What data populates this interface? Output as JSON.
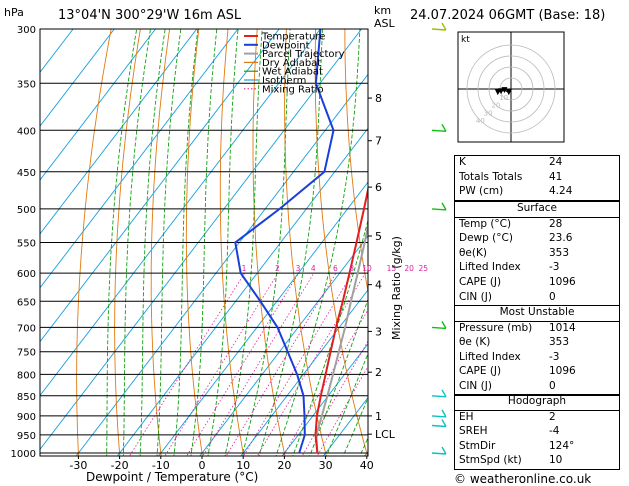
{
  "header": {
    "left_unit": "hPa",
    "location": "13°04'N  300°29'W  16m  ASL",
    "right_unit_top": "km",
    "right_unit_bottom": "ASL",
    "datetime": "24.07.2024  06GMT  (Base: 18)"
  },
  "footer": {
    "copyright": "© weatheronline.co.uk"
  },
  "chart_data": {
    "type": "line",
    "subtype": "skew-T log-P diagram",
    "xlabel": "Dewpoint / Temperature (°C)",
    "ylabel_left": "hPa",
    "ylabel_right": "Mixing Ratio (g/kg)",
    "x_ticks": [
      -30,
      -20,
      -10,
      0,
      10,
      20,
      30,
      40
    ],
    "pressure_levels": [
      300,
      350,
      400,
      450,
      500,
      550,
      600,
      650,
      700,
      750,
      800,
      850,
      900,
      950,
      1000
    ],
    "height_km_ticks": [
      {
        "label": "8",
        "p": 365
      },
      {
        "label": "7",
        "p": 412
      },
      {
        "label": "6",
        "p": 470
      },
      {
        "label": "5",
        "p": 540
      },
      {
        "label": "4",
        "p": 620
      },
      {
        "label": "3",
        "p": 708
      },
      {
        "label": "2",
        "p": 795
      },
      {
        "label": "1",
        "p": 900
      },
      {
        "label": "LCL",
        "p": 948
      }
    ],
    "mixing_ratio_labels": [
      "1",
      "2",
      "3",
      "4",
      "6",
      "8",
      "10",
      "15",
      "20",
      "25"
    ],
    "mixing_ratio_values": [
      1,
      2,
      3,
      4,
      6,
      8,
      10,
      15,
      20,
      25
    ],
    "legend": [
      "Temperature",
      "Dewpoint",
      "Parcel Trajectory",
      "Dry Adiabat",
      "Wet Adiabat",
      "Isotherm",
      "Mixing Ratio"
    ],
    "legend_position": "top-left",
    "colors": {
      "temperature": "#e02020",
      "dewpoint": "#1a3fd8",
      "parcel": "#a0a0a0",
      "dry_adiabat": "#e07a10",
      "wet_adiabat": "#10a010",
      "isotherm": "#18a0e0",
      "mixing_ratio": "#e020a0"
    },
    "series": [
      {
        "name": "Temperature",
        "points": [
          {
            "p": 1000,
            "t": 28.0
          },
          {
            "p": 950,
            "t": 24.2
          },
          {
            "p": 900,
            "t": 21.0
          },
          {
            "p": 850,
            "t": 18.2
          },
          {
            "p": 800,
            "t": 15.4
          },
          {
            "p": 750,
            "t": 12.4
          },
          {
            "p": 700,
            "t": 9.2
          },
          {
            "p": 650,
            "t": 6.0
          },
          {
            "p": 600,
            "t": 2.4
          },
          {
            "p": 550,
            "t": -1.6
          },
          {
            "p": 500,
            "t": -6.0
          },
          {
            "p": 450,
            "t": -11.0
          },
          {
            "p": 400,
            "t": -16.6
          },
          {
            "p": 350,
            "t": -23.5
          },
          {
            "p": 300,
            "t": -31.5
          }
        ]
      },
      {
        "name": "Dewpoint",
        "points": [
          {
            "p": 1000,
            "t": 23.6
          },
          {
            "p": 950,
            "t": 21.6
          },
          {
            "p": 900,
            "t": 18.0
          },
          {
            "p": 850,
            "t": 14.0
          },
          {
            "p": 800,
            "t": 8.5
          },
          {
            "p": 750,
            "t": 2.0
          },
          {
            "p": 700,
            "t": -5.0
          },
          {
            "p": 650,
            "t": -14.0
          },
          {
            "p": 600,
            "t": -24.0
          },
          {
            "p": 550,
            "t": -31.0
          },
          {
            "p": 500,
            "t": -26.5
          },
          {
            "p": 450,
            "t": -22.5
          },
          {
            "p": 400,
            "t": -28.0
          },
          {
            "p": 350,
            "t": -41.0
          },
          {
            "p": 300,
            "t": -50.0
          }
        ]
      },
      {
        "name": "Parcel Trajectory",
        "points": [
          {
            "p": 1000,
            "t": 28.0
          },
          {
            "p": 950,
            "t": 24.4
          },
          {
            "p": 900,
            "t": 22.2
          },
          {
            "p": 850,
            "t": 19.8
          },
          {
            "p": 800,
            "t": 17.2
          },
          {
            "p": 750,
            "t": 14.4
          },
          {
            "p": 700,
            "t": 11.4
          },
          {
            "p": 650,
            "t": 8.0
          },
          {
            "p": 600,
            "t": 4.4
          },
          {
            "p": 550,
            "t": 0.4
          },
          {
            "p": 500,
            "t": -4.2
          },
          {
            "p": 450,
            "t": -9.4
          },
          {
            "p": 400,
            "t": -15.2
          },
          {
            "p": 350,
            "t": -22.0
          },
          {
            "p": 300,
            "t": -29.5
          }
        ]
      }
    ],
    "wind_barbs": [
      {
        "p": 300,
        "color": "#a0c000"
      },
      {
        "p": 400,
        "color": "#10c010"
      },
      {
        "p": 500,
        "color": "#10c010"
      },
      {
        "p": 700,
        "color": "#10c010"
      },
      {
        "p": 850,
        "color": "#10c0c0"
      },
      {
        "p": 900,
        "color": "#10c0c0"
      },
      {
        "p": 925,
        "color": "#10c0c0"
      },
      {
        "p": 1000,
        "color": "#10c0c0"
      }
    ],
    "hodograph": {
      "unit_label": "kt",
      "ring_labels": [
        "10",
        "20",
        "30",
        "40"
      ],
      "points": [
        {
          "u": -2,
          "v": -3
        },
        {
          "u": -6,
          "v": -1
        },
        {
          "u": -9,
          "v": -2
        },
        {
          "u": -12,
          "v": -3
        }
      ]
    }
  },
  "indices": {
    "rows": [
      {
        "label": "K",
        "value": "24"
      },
      {
        "label": "Totals Totals",
        "value": "41"
      },
      {
        "label": "PW (cm)",
        "value": "4.24"
      }
    ],
    "surface": {
      "title": "Surface",
      "rows": [
        {
          "label": "Temp (°C)",
          "value": "28"
        },
        {
          "label": "Dewp (°C)",
          "value": "23.6"
        },
        {
          "label": "θe(K)",
          "value": "353"
        },
        {
          "label": "Lifted Index",
          "value": "-3"
        },
        {
          "label": "CAPE (J)",
          "value": "1096"
        },
        {
          "label": "CIN (J)",
          "value": "0"
        }
      ]
    },
    "most_unstable": {
      "title": "Most Unstable",
      "rows": [
        {
          "label": "Pressure (mb)",
          "value": "1014"
        },
        {
          "label": "θe (K)",
          "value": "353"
        },
        {
          "label": "Lifted Index",
          "value": "-3"
        },
        {
          "label": "CAPE (J)",
          "value": "1096"
        },
        {
          "label": "CIN (J)",
          "value": "0"
        }
      ]
    },
    "hodograph": {
      "title": "Hodograph",
      "rows": [
        {
          "label": "EH",
          "value": "2"
        },
        {
          "label": "SREH",
          "value": "-4"
        },
        {
          "label": "StmDir",
          "value": "124°"
        },
        {
          "label": "StmSpd (kt)",
          "value": "10"
        }
      ]
    }
  }
}
